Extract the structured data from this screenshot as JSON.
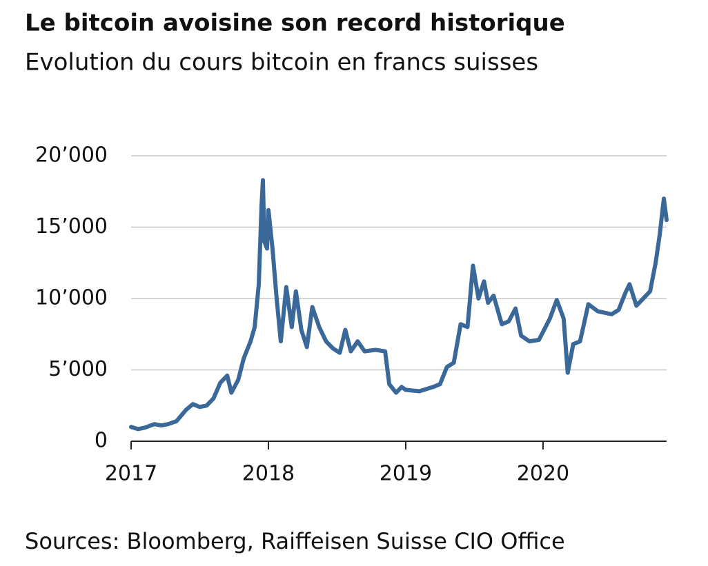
{
  "chart_data": {
    "type": "line",
    "title": "Le bitcoin avoisine son record historique",
    "subtitle": "Evolution du cours bitcoin en francs suisses",
    "source": "Sources: Bloomberg, Raiffeisen Suisse CIO Office",
    "color": "#3a6898",
    "grid": true,
    "x": [
      2017.0,
      2017.05,
      2017.1,
      2017.17,
      2017.22,
      2017.27,
      2017.33,
      2017.4,
      2017.45,
      2017.5,
      2017.55,
      2017.6,
      2017.65,
      2017.7,
      2017.73,
      2017.78,
      2017.82,
      2017.87,
      2017.9,
      2017.93,
      2017.95,
      2017.96,
      2017.97,
      2017.99,
      2018.0,
      2018.03,
      2018.06,
      2018.09,
      2018.13,
      2018.17,
      2018.2,
      2018.24,
      2018.28,
      2018.32,
      2018.37,
      2018.42,
      2018.47,
      2018.52,
      2018.56,
      2018.6,
      2018.65,
      2018.7,
      2018.78,
      2018.85,
      2018.88,
      2018.93,
      2018.97,
      2019.0,
      2019.1,
      2019.2,
      2019.25,
      2019.3,
      2019.35,
      2019.4,
      2019.45,
      2019.49,
      2019.53,
      2019.57,
      2019.6,
      2019.64,
      2019.7,
      2019.75,
      2019.8,
      2019.84,
      2019.9,
      2019.97,
      2020.05,
      2020.1,
      2020.15,
      2020.18,
      2020.22,
      2020.27,
      2020.33,
      2020.4,
      2020.5,
      2020.55,
      2020.6,
      2020.63,
      2020.68,
      2020.73,
      2020.78,
      2020.82,
      2020.85,
      2020.88,
      2020.9
    ],
    "values": [
      1000,
      850,
      950,
      1200,
      1100,
      1200,
      1400,
      2200,
      2600,
      2400,
      2500,
      3000,
      4100,
      4600,
      3400,
      4300,
      5800,
      7000,
      8000,
      11000,
      16500,
      18300,
      14000,
      13500,
      16200,
      13500,
      10000,
      7000,
      10800,
      8000,
      10500,
      7800,
      6600,
      9400,
      8000,
      7000,
      6500,
      6200,
      7800,
      6300,
      7000,
      6300,
      6400,
      6300,
      4000,
      3400,
      3800,
      3600,
      3500,
      3800,
      4000,
      5200,
      5500,
      8200,
      8000,
      12300,
      10000,
      11200,
      9700,
      10200,
      8200,
      8400,
      9300,
      7400,
      7000,
      7100,
      8600,
      9900,
      8600,
      4800,
      6800,
      7000,
      9600,
      9100,
      8900,
      9200,
      10400,
      11000,
      9500,
      10000,
      10500,
      12500,
      14500,
      17000,
      15500
    ],
    "xlim": [
      2017,
      2020.9
    ],
    "xticks": [
      2017,
      2018,
      2019,
      2020
    ],
    "ylim": [
      0,
      20000
    ],
    "yticks": [
      0,
      {
        "value": 5000,
        "label": "5’000"
      },
      {
        "value": 10000,
        "label": "10’000"
      },
      {
        "value": 15000,
        "label": "15’000"
      },
      {
        "value": 20000,
        "label": "20’000"
      }
    ]
  }
}
